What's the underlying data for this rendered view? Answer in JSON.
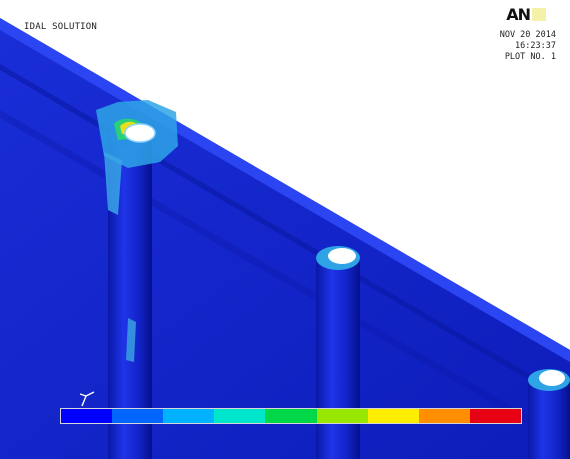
{
  "header": {
    "solution_label": "IDAL SOLUTION",
    "date": "NOV 20 2014",
    "time": "16:23:37",
    "plot_no": "PLOT NO.  1",
    "brand": "AN"
  },
  "colorbar": {
    "colors": [
      "#0000ff",
      "#0066ff",
      "#00b2ff",
      "#00e6cc",
      "#00d84a",
      "#99e600",
      "#ffee00",
      "#ff8f00",
      "#e80014"
    ]
  },
  "icons": {
    "triad": "coordinate-triad-icon"
  }
}
